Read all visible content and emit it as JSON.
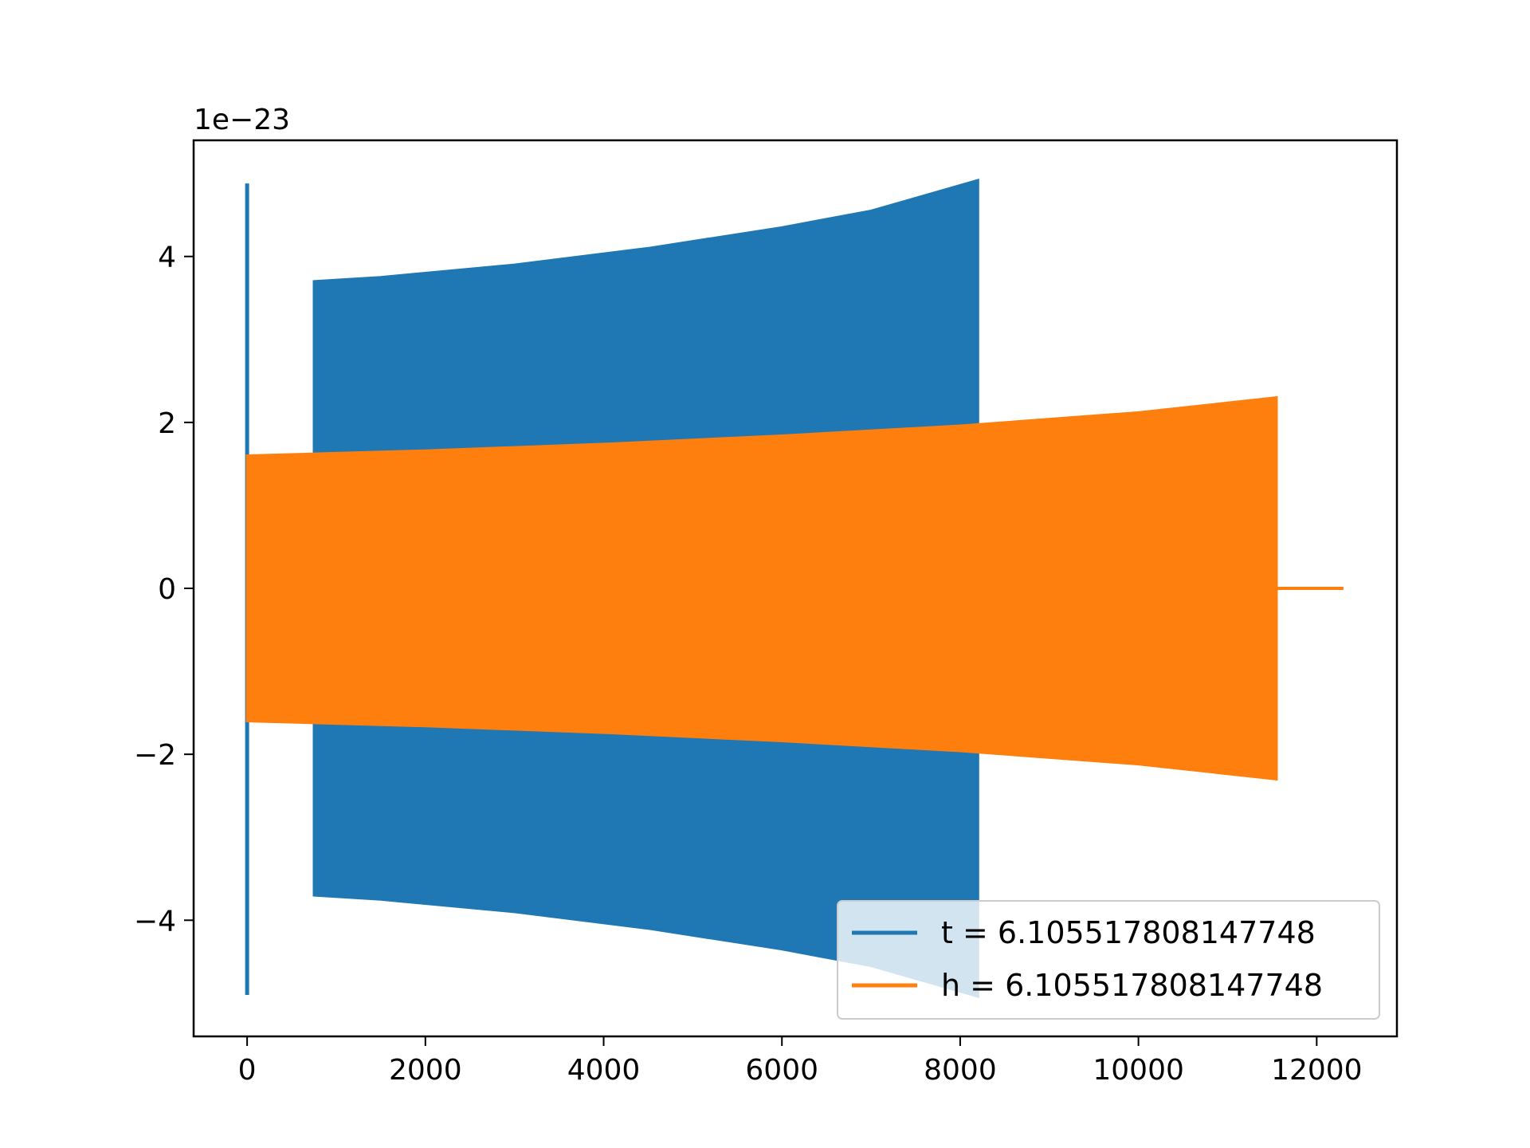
{
  "chart_data": {
    "type": "line",
    "title": "",
    "xlabel": "",
    "ylabel": "",
    "y_offset_text": "1e−23",
    "xlim": [
      -600,
      12900
    ],
    "ylim": [
      -5.4,
      5.4
    ],
    "x_ticks": [
      0,
      2000,
      4000,
      6000,
      8000,
      10000,
      12000
    ],
    "x_tick_labels": [
      "0",
      "2000",
      "4000",
      "6000",
      "8000",
      "10000",
      "12000"
    ],
    "y_ticks": [
      -4,
      -2,
      0,
      2,
      4
    ],
    "y_tick_labels": [
      "−4",
      "−2",
      "0",
      "2",
      "4"
    ],
    "grid": false,
    "legend_position": "lower-right",
    "series": [
      {
        "name": "t = 6.105517808147748",
        "color": "#1f77b4",
        "spike": {
          "x": 0,
          "ymax": 4.88,
          "ymin": -4.9
        },
        "upper_envelope": {
          "x": [
            750,
            1500,
            3000,
            4500,
            6000,
            7000,
            8200
          ],
          "y": [
            3.7,
            3.75,
            3.9,
            4.1,
            4.35,
            4.55,
            4.92
          ]
        },
        "lower_envelope": {
          "x": [
            750,
            1500,
            3000,
            4500,
            6000,
            7000,
            8200
          ],
          "y": [
            -3.7,
            -3.75,
            -3.9,
            -4.1,
            -4.35,
            -4.55,
            -4.92
          ]
        }
      },
      {
        "name": "h = 6.105517808147748",
        "color": "#ff7f0e",
        "upper_envelope": {
          "x": [
            0,
            2000,
            4000,
            6000,
            8000,
            10000,
            11550
          ],
          "y": [
            1.6,
            1.66,
            1.74,
            1.84,
            1.96,
            2.12,
            2.3
          ]
        },
        "lower_envelope": {
          "x": [
            0,
            2000,
            4000,
            6000,
            8000,
            10000,
            11550
          ],
          "y": [
            -1.6,
            -1.66,
            -1.74,
            -1.84,
            -1.96,
            -2.12,
            -2.3
          ]
        },
        "tail": {
          "x": [
            11550,
            12300
          ],
          "y": [
            0,
            0
          ]
        }
      }
    ]
  }
}
